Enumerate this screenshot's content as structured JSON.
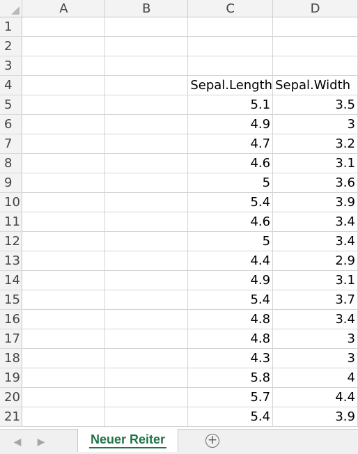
{
  "spreadsheet": {
    "columns": [
      "A",
      "B",
      "C",
      "D"
    ],
    "rows": [
      {
        "num": "1",
        "c": "",
        "d": ""
      },
      {
        "num": "2",
        "c": "",
        "d": ""
      },
      {
        "num": "3",
        "c": "",
        "d": ""
      },
      {
        "num": "4",
        "c": "Sepal.Length",
        "d": "Sepal.Width"
      },
      {
        "num": "5",
        "c": "5.1",
        "d": "3.5"
      },
      {
        "num": "6",
        "c": "4.9",
        "d": "3"
      },
      {
        "num": "7",
        "c": "4.7",
        "d": "3.2"
      },
      {
        "num": "8",
        "c": "4.6",
        "d": "3.1"
      },
      {
        "num": "9",
        "c": "5",
        "d": "3.6"
      },
      {
        "num": "10",
        "c": "5.4",
        "d": "3.9"
      },
      {
        "num": "11",
        "c": "4.6",
        "d": "3.4"
      },
      {
        "num": "12",
        "c": "5",
        "d": "3.4"
      },
      {
        "num": "13",
        "c": "4.4",
        "d": "2.9"
      },
      {
        "num": "14",
        "c": "4.9",
        "d": "3.1"
      },
      {
        "num": "15",
        "c": "5.4",
        "d": "3.7"
      },
      {
        "num": "16",
        "c": "4.8",
        "d": "3.4"
      },
      {
        "num": "17",
        "c": "4.8",
        "d": "3"
      },
      {
        "num": "18",
        "c": "4.3",
        "d": "3"
      },
      {
        "num": "19",
        "c": "5.8",
        "d": "4"
      },
      {
        "num": "20",
        "c": "5.7",
        "d": "4.4"
      },
      {
        "num": "21",
        "c": "5.4",
        "d": "3.9"
      }
    ]
  },
  "tabbar": {
    "prev_icon": "◀",
    "next_icon": "▶",
    "sheet_tab_label": "Neuer Reiter",
    "add_sheet_icon": "+"
  },
  "colors": {
    "accent_tab": "#217346",
    "header_bg": "#f3f3f3",
    "gridline": "#d4d4d4"
  }
}
